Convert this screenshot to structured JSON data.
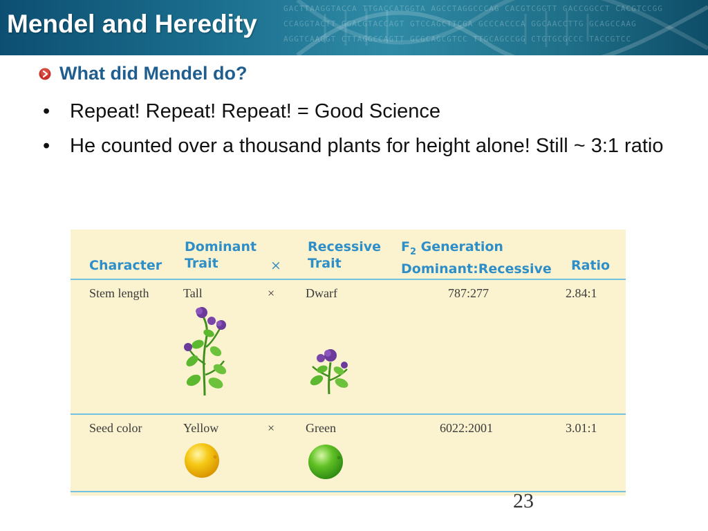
{
  "header": {
    "title": "Mendel and Heredity"
  },
  "subtitle": {
    "text": "What did Mendel do?"
  },
  "bullets": [
    {
      "text": "Repeat! Repeat! Repeat!  =  Good Science"
    },
    {
      "text": "He counted over a thousand plants for height alone! Still ~ 3:1 ratio"
    }
  ],
  "table": {
    "headers": {
      "character": "Character",
      "dominant_line1": "Dominant",
      "dominant_line2": "Trait",
      "cross": "×",
      "recessive_line1": "Recessive",
      "recessive_line2": "Trait",
      "f2_prefix": "F",
      "f2_sub": "2",
      "f2_rest": " Generation",
      "f2_line2": "Dominant:Recessive",
      "ratio": "Ratio"
    },
    "rows": [
      {
        "character": "Stem length",
        "dominant": "Tall",
        "cross": "×",
        "recessive": "Dwarf",
        "f2": "787:277",
        "ratio": "2.84:1"
      },
      {
        "character": "Seed color",
        "dominant": "Yellow",
        "cross": "×",
        "recessive": "Green",
        "f2": "6022:2001",
        "ratio": "3.01:1"
      }
    ],
    "colors": {
      "header_text": "#2e8ec8",
      "background": "#fbf3cf",
      "rule": "#6fc1df",
      "yellow_seed": "#f4c10d",
      "green_seed": "#52b41e"
    }
  },
  "page_number": "23",
  "icons": {
    "bullet_icon": "red-circle-arrow-icon"
  }
}
